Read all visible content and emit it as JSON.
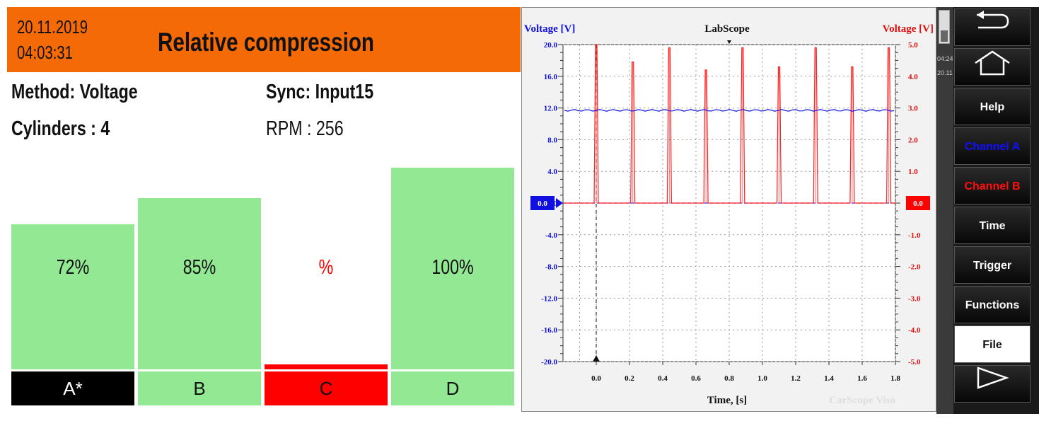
{
  "left": {
    "date": "20.11.2019",
    "time": "04:03:31",
    "title": "Relative compression",
    "method": "Method: Voltage",
    "sync": "Sync: Input15",
    "cylinders": "Cylinders : 4",
    "rpm": "RPM : 256",
    "bars": [
      {
        "label": "A*",
        "value_text": "72%",
        "value": 72,
        "color": "#93e993",
        "label_bg": "#000000",
        "label_color": "#ffffff"
      },
      {
        "label": "B",
        "value_text": "85%",
        "value": 85,
        "color": "#93e993",
        "label_bg": "#93e993",
        "label_color": "#111111"
      },
      {
        "label": "C",
        "value_text": "%",
        "value": 0,
        "color": "#ff0000",
        "label_bg": "#ff0000",
        "label_color": "#111111"
      },
      {
        "label": "D",
        "value_text": "100%",
        "value": 100,
        "color": "#93e993",
        "label_bg": "#93e993",
        "label_color": "#111111"
      }
    ]
  },
  "scope": {
    "title": "LabScope",
    "left_axis_label": "Voltage [V]",
    "right_axis_label": "Voltage [V]",
    "x_label": "Time, [s]",
    "watermark": "CarScope Viso",
    "marker_left": "0.0",
    "marker_right": "0.0",
    "colors": {
      "channel_a": "#1010e0",
      "channel_b": "#ff2020"
    },
    "chart_data": {
      "type": "line",
      "x_ticks": [
        "0.0",
        "0.2",
        "0.4",
        "0.6",
        "0.8",
        "1.0",
        "1.2",
        "1.4",
        "1.6",
        "1.8"
      ],
      "y_left_ticks": [
        "20.0",
        "16.0",
        "12.0",
        "8.0",
        "4.0",
        "0.0",
        "-4.0",
        "-8.0",
        "-12.0",
        "-16.0",
        "-20.0"
      ],
      "y_right_ticks": [
        "5.0",
        "4.0",
        "3.0",
        "2.0",
        "1.0",
        "0.0",
        "-1.0",
        "-2.0",
        "-3.0",
        "-4.0",
        "-5.0"
      ],
      "xlim": [
        -0.2,
        1.8
      ],
      "ylim_left": [
        -20,
        20
      ],
      "ylim_right": [
        -5,
        5
      ],
      "grid": true,
      "series": [
        {
          "name": "Channel A",
          "axis": "left",
          "level": 11.7
        },
        {
          "name": "Channel B",
          "axis": "right",
          "baseline": 0,
          "spikes": [
            {
              "x": 0.0,
              "y": 5.0
            },
            {
              "x": 0.22,
              "y": 4.45
            },
            {
              "x": 0.44,
              "y": 4.9
            },
            {
              "x": 0.66,
              "y": 4.2
            },
            {
              "x": 0.88,
              "y": 4.9
            },
            {
              "x": 1.1,
              "y": 4.3
            },
            {
              "x": 1.32,
              "y": 4.9
            },
            {
              "x": 1.54,
              "y": 4.3
            },
            {
              "x": 1.76,
              "y": 4.9
            }
          ]
        }
      ]
    }
  },
  "side": {
    "strip_time": "04:24",
    "strip_date": "20.11",
    "buttons": [
      {
        "label": "",
        "icon": "back-arrow-icon",
        "color": "#ffffff"
      },
      {
        "label": "",
        "icon": "home-icon",
        "color": "#ffffff"
      },
      {
        "label": "Help",
        "color": "#ffffff"
      },
      {
        "label": "Channel A",
        "color": "#1010ff"
      },
      {
        "label": "Channel B",
        "color": "#ff1010"
      },
      {
        "label": "Time",
        "color": "#ffffff"
      },
      {
        "label": "Trigger",
        "color": "#ffffff"
      },
      {
        "label": "Functions",
        "color": "#ffffff"
      },
      {
        "label": "File",
        "color": "#111111",
        "selected": true
      },
      {
        "label": "",
        "icon": "forward-triangle-icon",
        "color": "#ffffff"
      }
    ]
  }
}
